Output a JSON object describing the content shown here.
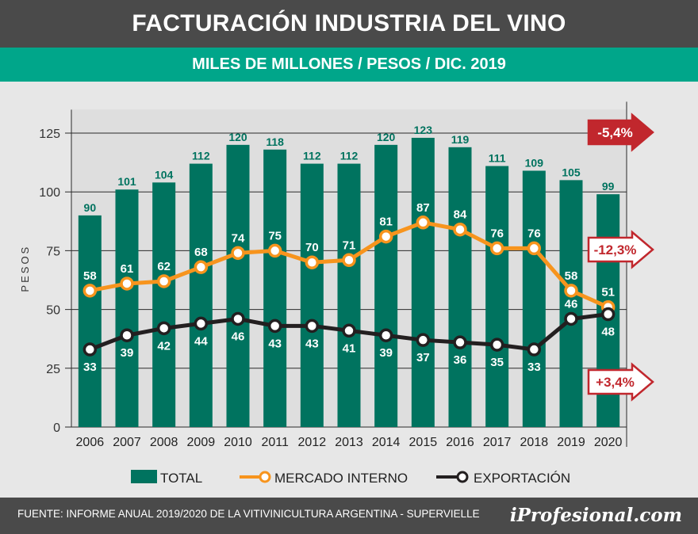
{
  "header": {
    "title": "FACTURACIÓN INDUSTRIA DEL VINO",
    "subtitle": "MILES DE MILLONES / PESOS / DIC. 2019"
  },
  "footer": {
    "source": "FUENTE:  INFORME ANUAL 2019/2020 DE LA VITIVINICULTURA ARGENTINA - SUPERVIELLE",
    "brand": "iProfesional.com"
  },
  "chart_data": {
    "type": "bar",
    "categories": [
      "2006",
      "2007",
      "2008",
      "2009",
      "2010",
      "2011",
      "2012",
      "2013",
      "2014",
      "2015",
      "2016",
      "2017",
      "2018",
      "2019",
      "2020"
    ],
    "ylabel": "PESOS",
    "ylim": [
      0,
      135
    ],
    "yticks": [
      0,
      25,
      50,
      75,
      100,
      125
    ],
    "grid": true,
    "legend_position": "bottom",
    "series": [
      {
        "name": "TOTAL",
        "type": "bar",
        "color": "#00735f",
        "values": [
          90,
          101,
          104,
          112,
          120,
          118,
          112,
          112,
          120,
          123,
          119,
          111,
          109,
          105,
          99
        ]
      },
      {
        "name": "MERCADO INTERNO",
        "type": "line",
        "color": "#f7941d",
        "values": [
          58,
          61,
          62,
          68,
          74,
          75,
          70,
          71,
          81,
          87,
          84,
          76,
          76,
          58,
          51
        ]
      },
      {
        "name": "EXPORTACIÓN",
        "type": "line",
        "color": "#231f20",
        "values": [
          33,
          39,
          42,
          44,
          46,
          43,
          43,
          41,
          39,
          37,
          36,
          35,
          33,
          46,
          48
        ]
      }
    ],
    "annotations": [
      {
        "text": "-5,4%",
        "style": "filled",
        "series": "TOTAL"
      },
      {
        "text": "-12,3%",
        "style": "outline",
        "series": "MERCADO INTERNO"
      },
      {
        "text": "+3,4%",
        "style": "outline",
        "series": "EXPORTACIÓN"
      }
    ]
  }
}
